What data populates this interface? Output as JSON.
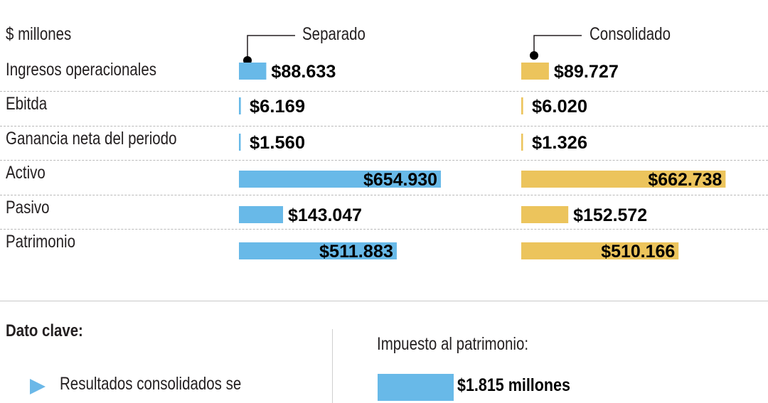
{
  "colors": {
    "separado": "#68b9e8",
    "consolidado": "#ecc45c",
    "bullet": "#6bb8e8"
  },
  "chart_data": {
    "type": "bar",
    "orientation": "horizontal",
    "unit_label": "$ millones",
    "categories": [
      "Ingresos operacionales",
      "Ebitda",
      "Ganancia neta del periodo",
      "Activo",
      "Pasivo",
      "Patrimonio"
    ],
    "series": [
      {
        "name": "Separado",
        "values": [
          88633,
          6169,
          1560,
          654930,
          143047,
          511883
        ],
        "labels": [
          "$88.633",
          "$6.169",
          "$1.560",
          "$654.930",
          "$143.047",
          "$511.883"
        ]
      },
      {
        "name": "Consolidado",
        "values": [
          89727,
          6020,
          1326,
          662738,
          152572,
          510166
        ],
        "labels": [
          "$89.727",
          "$6.020",
          "$1.326",
          "$662.738",
          "$152.572",
          "$510.166"
        ]
      }
    ],
    "grid": false,
    "legend": "top"
  },
  "key": {
    "title": "Dato clave:",
    "bullet_text": "Resultados consolidados se",
    "tax_title": "Impuesto al patrimonio:",
    "tax_value": "$1.815 millones",
    "tax_amount": 1815
  }
}
